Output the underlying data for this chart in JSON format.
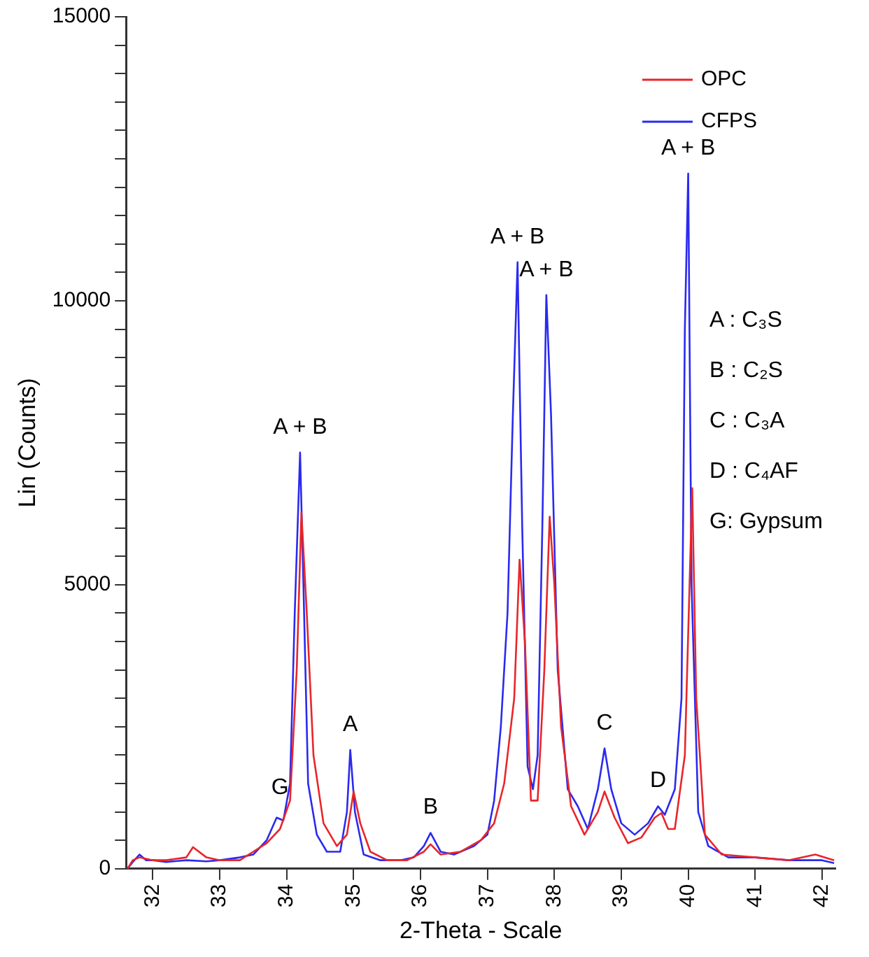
{
  "chart_data": {
    "type": "line",
    "xlabel": "2-Theta - Scale",
    "ylabel": "Lin (Counts)",
    "xlim": [
      31.6,
      42.2
    ],
    "xticks": [
      32,
      33,
      34,
      35,
      36,
      37,
      38,
      39,
      40,
      41,
      42
    ],
    "ylim": [
      0,
      15000
    ],
    "yticks": [
      0,
      {
        "value": 500,
        "label": null
      },
      {
        "value": 1000,
        "label": null
      },
      {
        "value": 1500,
        "label": null
      },
      {
        "value": 2000,
        "label": null
      },
      {
        "value": 2500,
        "label": null
      },
      {
        "value": 3000,
        "label": null
      },
      {
        "value": 3500,
        "label": null
      },
      {
        "value": 4000,
        "label": null
      },
      {
        "value": 4500,
        "label": null
      },
      5000,
      {
        "value": 5500,
        "label": null
      },
      {
        "value": 6000,
        "label": null
      },
      {
        "value": 6500,
        "label": null
      },
      {
        "value": 7000,
        "label": null
      },
      {
        "value": 7500,
        "label": null
      },
      {
        "value": 8000,
        "label": null
      },
      {
        "value": 8500,
        "label": null
      },
      {
        "value": 9000,
        "label": null
      },
      {
        "value": 9500,
        "label": null
      },
      10000,
      {
        "value": 10500,
        "label": null
      },
      {
        "value": 11000,
        "label": null
      },
      {
        "value": 11500,
        "label": null
      },
      {
        "value": 12000,
        "label": null
      },
      {
        "value": 12500,
        "label": null
      },
      {
        "value": 13000,
        "label": null
      },
      {
        "value": 13500,
        "label": null
      },
      {
        "value": 14000,
        "label": null
      },
      {
        "value": 14500,
        "label": null
      },
      15000
    ],
    "tick_labels": "xy",
    "grid": false,
    "legend": "top right",
    "marker": "none",
    "line_style": "solid",
    "series": [
      {
        "name": "OPC",
        "color": "#e8262a",
        "x": [
          31.62,
          31.7,
          31.8,
          32.0,
          32.2,
          32.5,
          32.6,
          32.8,
          33.0,
          33.3,
          33.5,
          33.7,
          33.9,
          34.05,
          34.15,
          34.22,
          34.3,
          34.4,
          34.55,
          34.75,
          34.9,
          35.0,
          35.1,
          35.25,
          35.5,
          35.8,
          36.05,
          36.15,
          36.3,
          36.6,
          36.9,
          37.1,
          37.25,
          37.4,
          37.48,
          37.56,
          37.65,
          37.75,
          37.85,
          37.93,
          38.0,
          38.1,
          38.25,
          38.45,
          38.65,
          38.75,
          38.9,
          39.1,
          39.3,
          39.5,
          39.6,
          39.7,
          39.8,
          39.95,
          40.02,
          40.06,
          40.12,
          40.25,
          40.5,
          41.0,
          41.5,
          41.9,
          42.18
        ],
        "values": [
          0,
          150,
          200,
          150,
          150,
          200,
          380,
          200,
          150,
          150,
          300,
          450,
          700,
          1200,
          3500,
          6270,
          4500,
          2000,
          800,
          400,
          600,
          1360,
          800,
          300,
          150,
          150,
          300,
          430,
          250,
          300,
          500,
          800,
          1500,
          3000,
          5440,
          4000,
          1200,
          1200,
          3500,
          6200,
          5000,
          2500,
          1100,
          600,
          1000,
          1360,
          900,
          450,
          550,
          900,
          980,
          700,
          700,
          2000,
          5000,
          6700,
          3000,
          600,
          250,
          200,
          150,
          250,
          150
        ]
      },
      {
        "name": "CFPS",
        "color": "#2a2af0",
        "x": [
          31.62,
          31.7,
          31.8,
          31.9,
          32.0,
          32.2,
          32.5,
          32.8,
          33.0,
          33.3,
          33.5,
          33.7,
          33.85,
          33.95,
          34.05,
          34.12,
          34.2,
          34.25,
          34.32,
          34.45,
          34.6,
          34.8,
          34.9,
          34.95,
          35.02,
          35.15,
          35.4,
          35.7,
          35.9,
          36.05,
          36.15,
          36.3,
          36.5,
          36.8,
          37.0,
          37.1,
          37.2,
          37.3,
          37.38,
          37.45,
          37.52,
          37.6,
          37.68,
          37.75,
          37.82,
          37.88,
          37.95,
          38.05,
          38.2,
          38.35,
          38.5,
          38.65,
          38.75,
          38.85,
          39.0,
          39.2,
          39.4,
          39.55,
          39.65,
          39.8,
          39.9,
          39.95,
          40.0,
          40.05,
          40.15,
          40.3,
          40.6,
          41.0,
          41.5,
          42.0,
          42.18
        ],
        "values": [
          0,
          120,
          250,
          150,
          150,
          120,
          150,
          130,
          150,
          200,
          250,
          500,
          900,
          850,
          1500,
          4500,
          7330,
          5000,
          1500,
          600,
          300,
          300,
          1000,
          2090,
          1000,
          250,
          150,
          150,
          200,
          400,
          630,
          300,
          250,
          400,
          600,
          1200,
          2500,
          4500,
          8000,
          10680,
          6000,
          1800,
          1400,
          2000,
          6000,
          10100,
          8000,
          3500,
          1400,
          1100,
          700,
          1400,
          2120,
          1400,
          800,
          600,
          800,
          1100,
          950,
          1400,
          3000,
          9500,
          12240,
          5000,
          1000,
          400,
          200,
          200,
          150,
          150,
          100
        ]
      }
    ],
    "annotations": [
      {
        "text": "G",
        "x": 33.9,
        "y": 980
      },
      {
        "text": "A + B",
        "x": 34.2,
        "y": 7330
      },
      {
        "text": "A",
        "x": 34.95,
        "y": 2090
      },
      {
        "text": "B",
        "x": 36.15,
        "y": 630
      },
      {
        "text": "A + B",
        "x": 37.45,
        "y": 10680
      },
      {
        "text": "A + B",
        "x": 37.88,
        "y": 10100
      },
      {
        "text": "C",
        "x": 38.75,
        "y": 2120
      },
      {
        "text": "D",
        "x": 39.55,
        "y": 1100
      },
      {
        "text": "A + B",
        "x": 40.0,
        "y": 12240
      },
      "A : C₃S",
      "B : C₂S",
      "C : C₃A",
      "D : C₄AF",
      "G: Gypsum"
    ]
  }
}
